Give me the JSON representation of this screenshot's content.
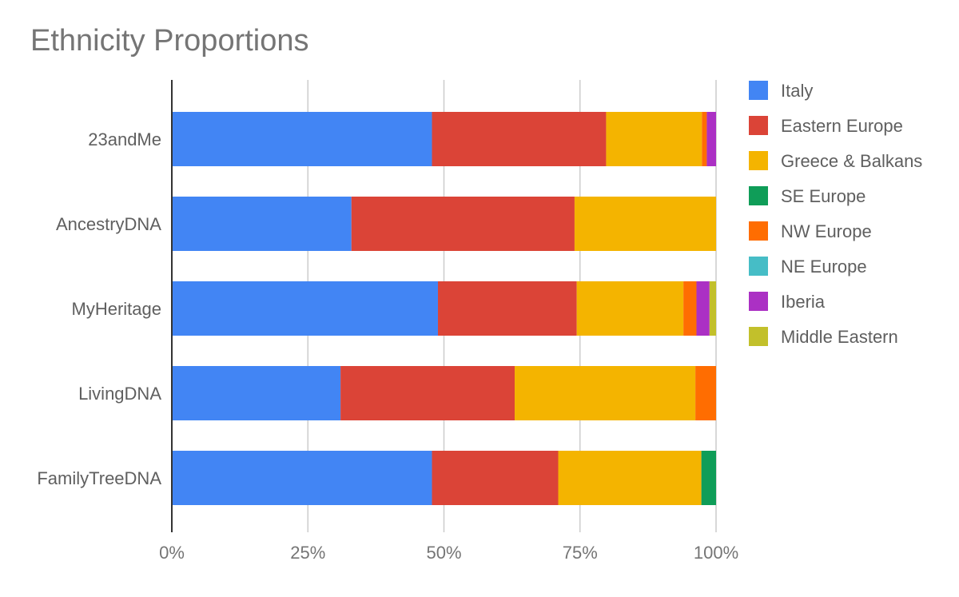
{
  "chart_data": {
    "type": "bar",
    "orientation": "horizontal",
    "stacking": "percent",
    "title": "Ethnicity Proportions",
    "categories": [
      "23andMe",
      "AncestryDNA",
      "MyHeritage",
      "LivingDNA",
      "FamilyTreeDNA"
    ],
    "x_ticks": [
      "0%",
      "25%",
      "50%",
      "75%",
      "100%"
    ],
    "xlim": [
      0,
      100
    ],
    "grid": true,
    "legend_position": "right",
    "series": [
      {
        "name": "Italy",
        "color": "#4285f4",
        "values": [
          47.8,
          33.0,
          48.9,
          31.0,
          47.8
        ]
      },
      {
        "name": "Eastern Europe",
        "color": "#db4437",
        "values": [
          32.0,
          41.0,
          25.5,
          32.0,
          23.2
        ]
      },
      {
        "name": "Greece & Balkans",
        "color": "#f4b400",
        "values": [
          17.6,
          26.0,
          19.6,
          33.2,
          26.3
        ]
      },
      {
        "name": "SE Europe",
        "color": "#0f9d58",
        "values": [
          0,
          0,
          0,
          0,
          2.7
        ]
      },
      {
        "name": "NW Europe",
        "color": "#ff6d01",
        "values": [
          0.9,
          0,
          2.4,
          3.8,
          0
        ]
      },
      {
        "name": "NE Europe",
        "color": "#46bdc6",
        "values": [
          0,
          0,
          0,
          0,
          0
        ]
      },
      {
        "name": "Iberia",
        "color": "#ab30c4",
        "values": [
          1.7,
          0,
          2.4,
          0,
          0
        ]
      },
      {
        "name": "Middle Eastern",
        "color": "#c2c02b",
        "values": [
          0,
          0,
          1.2,
          0,
          0
        ]
      }
    ]
  }
}
